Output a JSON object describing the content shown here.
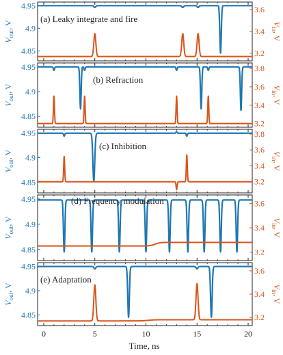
{
  "figure": {
    "xlabel": "Time, ns",
    "xticks": [
      "0",
      "5",
      "10",
      "15",
      "20"
    ],
    "left_label_main": "V",
    "left_label_sub": "out",
    "left_label_unit": ", V",
    "right_label_main": "V",
    "right_label_sub": "in",
    "right_label_unit": ", V",
    "vout_color": "#1f77b4",
    "vin_color": "#d9541a"
  },
  "chart_data": [
    {
      "type": "line",
      "title": "(a) Leaky integrate and fire",
      "xlim": [
        -0.6,
        20.4
      ],
      "ylim_left": [
        4.828,
        4.958
      ],
      "ylim_right": [
        3.13,
        3.67
      ],
      "yticks_left": [
        "4.95",
        "4.9",
        "4.85"
      ],
      "ytick_values_left": [
        4.95,
        4.9,
        4.85
      ],
      "yticks_right": [
        "3.6",
        "3.4",
        "3.2"
      ],
      "ytick_values_right": [
        3.6,
        3.4,
        3.2
      ],
      "series": [
        {
          "axis": "left",
          "baseline": 4.95,
          "events": [
            {
              "t": 5.0,
              "a": 4.946,
              "w": 0.12
            },
            {
              "t": 13.6,
              "a": 4.946,
              "w": 0.12
            },
            {
              "t": 15.1,
              "a": 4.946,
              "w": 0.12
            },
            {
              "t": 17.3,
              "a": 4.845,
              "w": 0.1
            }
          ]
        },
        {
          "axis": "right",
          "baseline": 3.17,
          "events": [
            {
              "t": 5.0,
              "a": 3.38,
              "w": 0.14
            },
            {
              "t": 13.6,
              "a": 3.38,
              "w": 0.14
            },
            {
              "t": 15.1,
              "a": 3.38,
              "w": 0.14
            }
          ]
        }
      ]
    },
    {
      "type": "line",
      "title": "(b) Refraction",
      "xlim": [
        -0.6,
        20.4
      ],
      "ylim_left": [
        4.828,
        4.958
      ],
      "ylim_right": [
        3.16,
        3.86
      ],
      "yticks_left": [
        "4.95",
        "4.9",
        "4.85"
      ],
      "ytick_values_left": [
        4.95,
        4.9,
        4.85
      ],
      "yticks_right": [
        "3.8",
        "3.6",
        "3.4",
        "3.2"
      ],
      "ytick_values_right": [
        3.8,
        3.6,
        3.4,
        3.2
      ],
      "series": [
        {
          "axis": "left",
          "baseline": 4.95,
          "events": [
            {
              "t": 1.0,
              "a": 4.943,
              "w": 0.08
            },
            {
              "t": 3.6,
              "a": 4.865,
              "w": 0.09
            },
            {
              "t": 4.0,
              "a": 4.943,
              "w": 0.08
            },
            {
              "t": 13.0,
              "a": 4.943,
              "w": 0.08
            },
            {
              "t": 15.4,
              "a": 4.865,
              "w": 0.09
            },
            {
              "t": 16.1,
              "a": 4.943,
              "w": 0.08
            },
            {
              "t": 19.3,
              "a": 4.862,
              "w": 0.09
            }
          ]
        },
        {
          "axis": "right",
          "baseline": 3.2,
          "events": [
            {
              "t": 1.0,
              "a": 3.5,
              "w": 0.07
            },
            {
              "t": 4.0,
              "a": 3.5,
              "w": 0.07
            },
            {
              "t": 13.0,
              "a": 3.5,
              "w": 0.07
            },
            {
              "t": 16.1,
              "a": 3.5,
              "w": 0.07
            }
          ]
        }
      ]
    },
    {
      "type": "line",
      "title": "(c) Inhibition",
      "xlim": [
        -0.6,
        20.4
      ],
      "ylim_left": [
        4.828,
        4.958
      ],
      "ylim_right": [
        3.06,
        3.86
      ],
      "yticks_left": [
        "4.95",
        "4.9",
        "4.85"
      ],
      "ytick_values_left": [
        4.95,
        4.9,
        4.85
      ],
      "yticks_right": [
        "3.8",
        "3.6",
        "3.4",
        "3.2"
      ],
      "ytick_values_right": [
        3.8,
        3.6,
        3.4,
        3.2
      ],
      "series": [
        {
          "axis": "left",
          "baseline": 4.95,
          "events": [
            {
              "t": 2.0,
              "a": 4.944,
              "w": 0.08
            },
            {
              "t": 4.9,
              "a": 4.852,
              "w": 0.13
            },
            {
              "t": 13.0,
              "a": 4.953,
              "w": 0.08
            },
            {
              "t": 14.0,
              "a": 4.944,
              "w": 0.08
            }
          ]
        },
        {
          "axis": "right",
          "baseline": 3.2,
          "events": [
            {
              "t": 2.0,
              "a": 3.52,
              "w": 0.07
            },
            {
              "t": 13.0,
              "a": 3.1,
              "w": 0.07
            },
            {
              "t": 14.0,
              "a": 3.54,
              "w": 0.07
            }
          ]
        }
      ]
    },
    {
      "type": "line",
      "title": "(d) Frequency modulation",
      "xlim": [
        -0.6,
        20.4
      ],
      "ylim_left": [
        4.828,
        4.958
      ],
      "ylim_right": [
        3.13,
        3.67
      ],
      "yticks_left": [
        "4.95",
        "4.9",
        "4.85"
      ],
      "ytick_values_left": [
        4.95,
        4.9,
        4.85
      ],
      "yticks_right": [
        "3.6",
        "3.4",
        "3.2"
      ],
      "ytick_values_right": [
        3.6,
        3.4,
        3.2
      ],
      "series": [
        {
          "axis": "left",
          "baseline": 4.948,
          "events": [
            {
              "t": 2.0,
              "a": 4.845,
              "w": 0.1
            },
            {
              "t": 4.7,
              "a": 4.845,
              "w": 0.1
            },
            {
              "t": 7.4,
              "a": 4.845,
              "w": 0.1
            },
            {
              "t": 10.0,
              "a": 4.845,
              "w": 0.1
            },
            {
              "t": 12.3,
              "a": 4.845,
              "w": 0.1
            },
            {
              "t": 14.1,
              "a": 4.845,
              "w": 0.1
            },
            {
              "t": 15.7,
              "a": 4.845,
              "w": 0.1
            },
            {
              "t": 17.3,
              "a": 4.845,
              "w": 0.1
            },
            {
              "t": 18.9,
              "a": 4.845,
              "w": 0.1
            }
          ]
        },
        {
          "axis": "right",
          "baseline": 3.25,
          "steps": [
            {
              "t": 10.9,
              "to": 3.28,
              "w": 0.25
            }
          ],
          "events": []
        }
      ]
    },
    {
      "type": "line",
      "title": "(e) Adaptation",
      "xlim": [
        -0.6,
        20.4
      ],
      "ylim_left": [
        4.828,
        4.958
      ],
      "ylim_right": [
        3.13,
        3.67
      ],
      "yticks_left": [
        "4.95",
        "4.9",
        "4.85"
      ],
      "ytick_values_left": [
        4.95,
        4.9,
        4.85
      ],
      "yticks_right": [
        "3.6",
        "3.4",
        "3.2"
      ],
      "ytick_values_right": [
        3.6,
        3.4,
        3.2
      ],
      "series": [
        {
          "axis": "left",
          "baseline": 4.95,
          "events": [
            {
              "t": 5.0,
              "a": 4.945,
              "w": 0.12
            },
            {
              "t": 8.3,
              "a": 4.845,
              "w": 0.11
            },
            {
              "t": 15.0,
              "a": 4.945,
              "w": 0.12
            },
            {
              "t": 16.4,
              "a": 4.845,
              "w": 0.11
            }
          ]
        },
        {
          "axis": "right",
          "baseline": 3.17,
          "steps": [
            {
              "t": 10.2,
              "to": 3.18,
              "w": 0.3
            }
          ],
          "events": [
            {
              "t": 5.0,
              "a": 3.48,
              "w": 0.14
            },
            {
              "t": 15.0,
              "a": 3.48,
              "w": 0.14
            }
          ]
        }
      ]
    }
  ]
}
